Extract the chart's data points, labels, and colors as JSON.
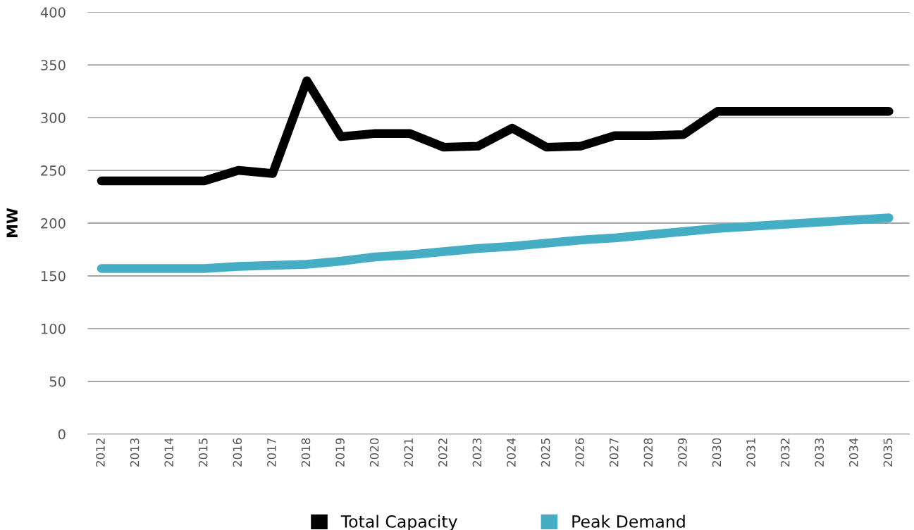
{
  "chart_data": {
    "type": "line",
    "ylabel": "MW",
    "categories": [
      "2012",
      "2013",
      "2014",
      "2015",
      "2016",
      "2017",
      "2018",
      "2019",
      "2020",
      "2021",
      "2022",
      "2023",
      "2024",
      "2025",
      "2026",
      "2027",
      "2028",
      "2029",
      "2030",
      "2031",
      "2032",
      "2033",
      "2034",
      "2035"
    ],
    "series": [
      {
        "name": "Total Capacity",
        "color": "#000000",
        "values": [
          240,
          240,
          240,
          240,
          250,
          247,
          335,
          282,
          285,
          285,
          272,
          273,
          290,
          272,
          273,
          283,
          283,
          284,
          306,
          306,
          306,
          306,
          306,
          306
        ]
      },
      {
        "name": "Peak Demand",
        "color": "#45adc4",
        "values": [
          157,
          157,
          157,
          157,
          159,
          160,
          161,
          164,
          168,
          170,
          173,
          176,
          178,
          181,
          184,
          186,
          189,
          192,
          195,
          197,
          199,
          201,
          203,
          205
        ]
      }
    ],
    "ylim": [
      0,
      400
    ],
    "yticks": [
      0,
      50,
      100,
      150,
      200,
      250,
      300,
      350,
      400
    ],
    "grid": "y",
    "legend": "bottom",
    "line_style": "solid"
  }
}
